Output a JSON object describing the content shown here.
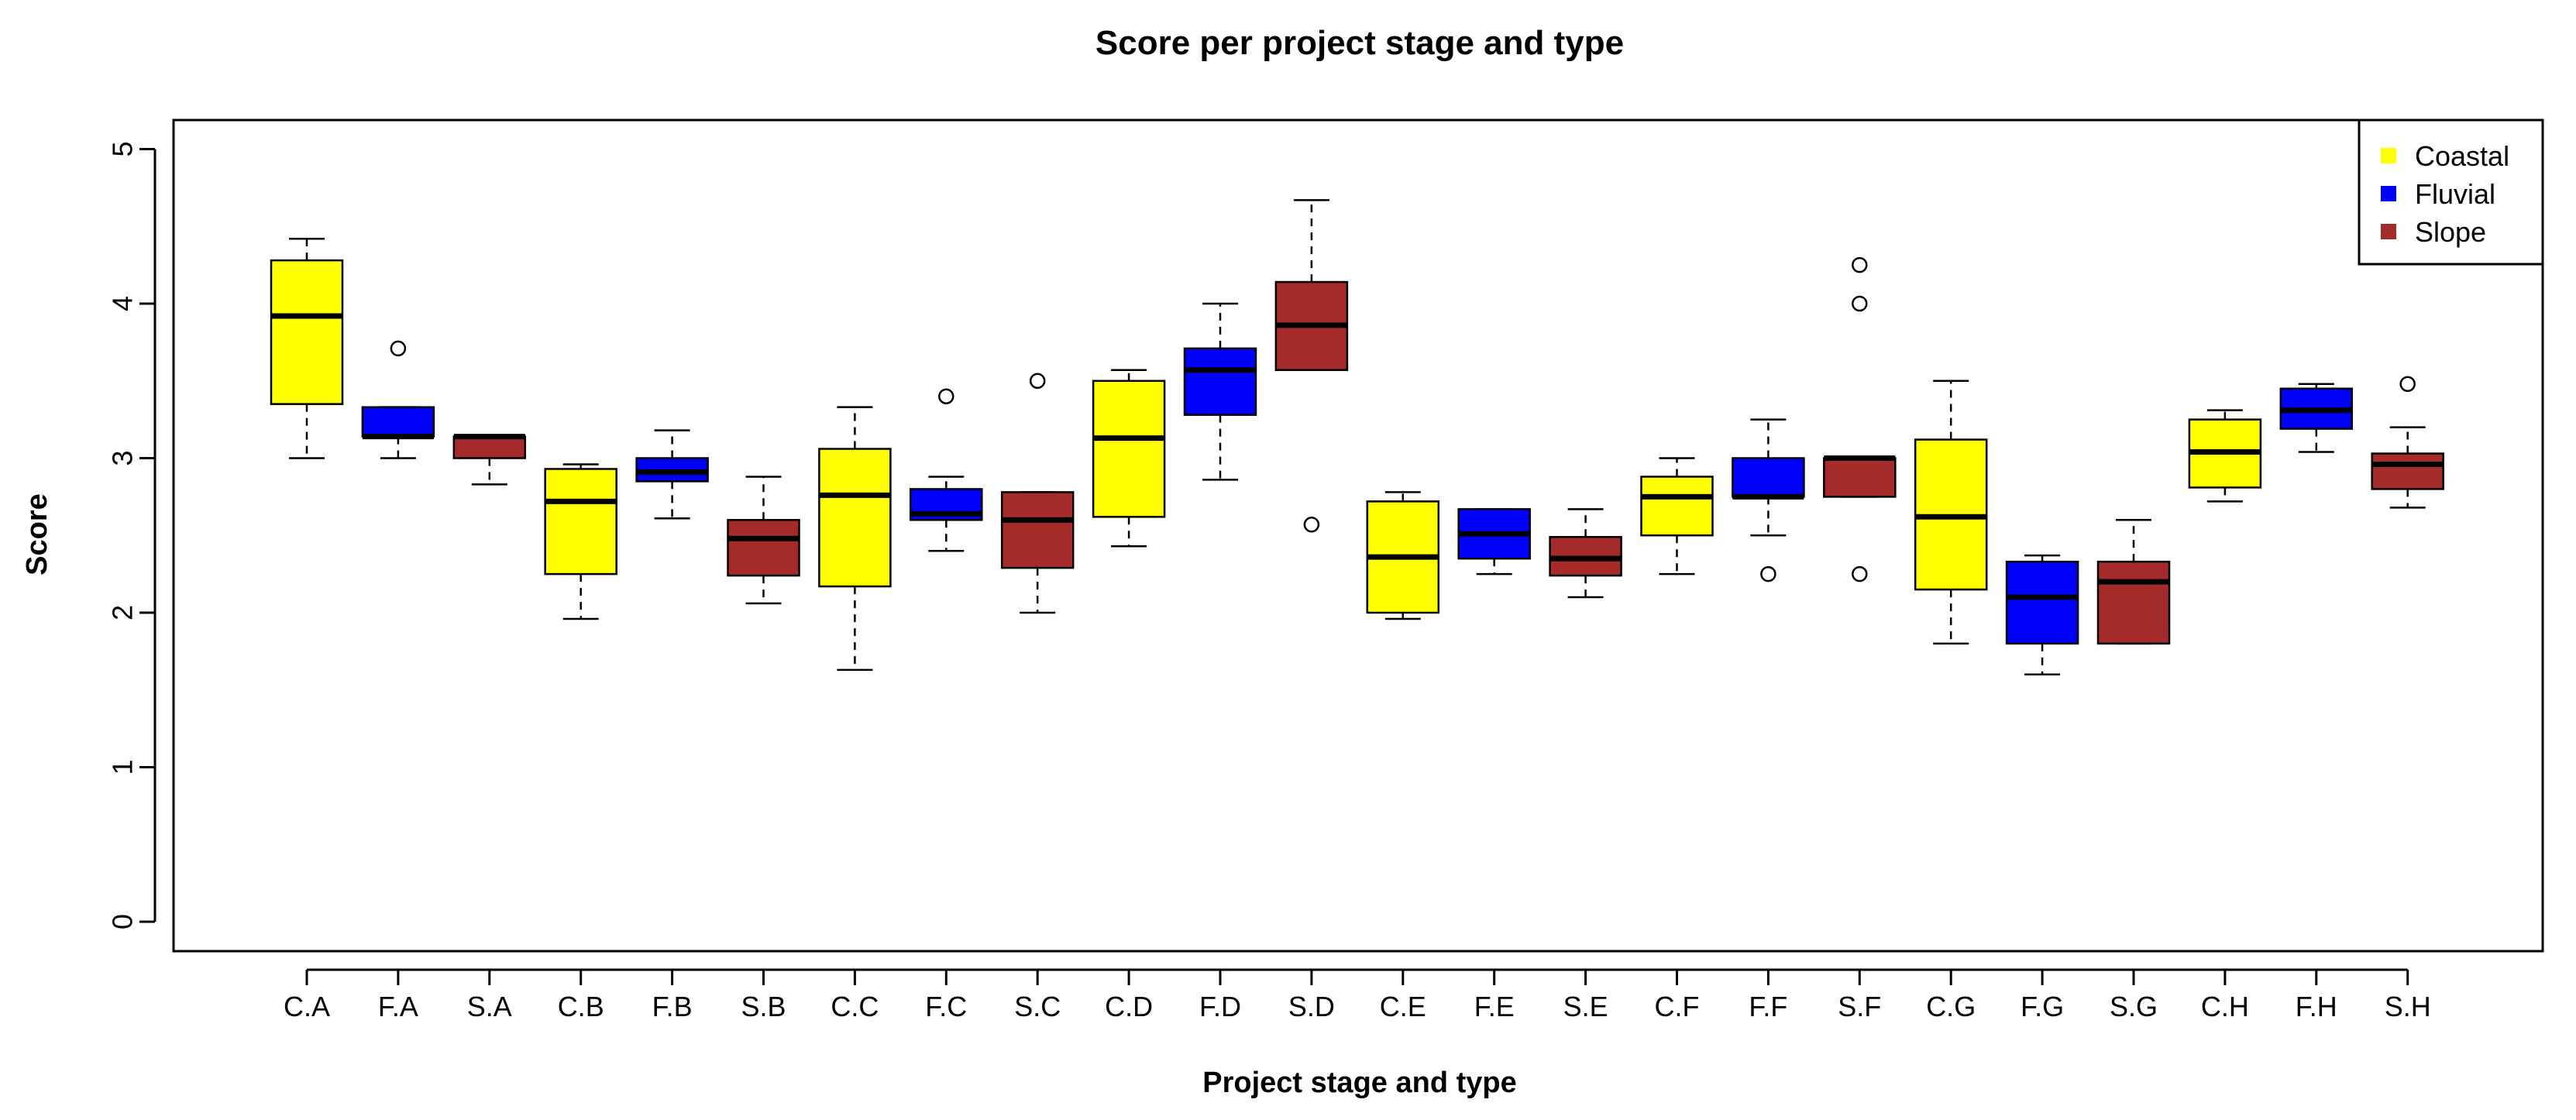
{
  "chart_data": {
    "type": "boxplot",
    "title": "Score per project stage and type",
    "xlabel": "Project stage and type",
    "ylabel": "Score",
    "ylim": [
      -0.2,
      5.2
    ],
    "yticks": [
      0,
      1,
      2,
      3,
      4,
      5
    ],
    "legend": {
      "position": "top-right",
      "entries": [
        {
          "label": "Coastal",
          "color": "#ffff00"
        },
        {
          "label": "Fluvial",
          "color": "#0000ff"
        },
        {
          "label": "Slope",
          "color": "#a52a2a"
        }
      ]
    },
    "categories": [
      "C.A",
      "F.A",
      "S.A",
      "C.B",
      "F.B",
      "S.B",
      "C.C",
      "F.C",
      "S.C",
      "C.D",
      "F.D",
      "S.D",
      "C.E",
      "F.E",
      "S.E",
      "C.F",
      "F.F",
      "S.F",
      "C.G",
      "F.G",
      "S.G",
      "C.H",
      "F.H",
      "S.H"
    ],
    "boxes": [
      {
        "label": "C.A",
        "type": "Coastal",
        "min": 3.0,
        "q1": 3.35,
        "median": 3.92,
        "q3": 4.28,
        "max": 4.42,
        "outliers": []
      },
      {
        "label": "F.A",
        "type": "Fluvial",
        "min": 3.0,
        "q1": 3.14,
        "median": 3.14,
        "q3": 3.33,
        "max": 3.33,
        "outliers": [
          3.71
        ]
      },
      {
        "label": "S.A",
        "type": "Slope",
        "min": 2.83,
        "q1": 3.0,
        "median": 3.14,
        "q3": 3.14,
        "max": 3.14,
        "outliers": []
      },
      {
        "label": "C.B",
        "type": "Coastal",
        "min": 1.96,
        "q1": 2.25,
        "median": 2.72,
        "q3": 2.93,
        "max": 2.96,
        "outliers": []
      },
      {
        "label": "F.B",
        "type": "Fluvial",
        "min": 2.61,
        "q1": 2.85,
        "median": 2.91,
        "q3": 3.0,
        "max": 3.18,
        "outliers": []
      },
      {
        "label": "S.B",
        "type": "Slope",
        "min": 2.06,
        "q1": 2.24,
        "median": 2.48,
        "q3": 2.6,
        "max": 2.88,
        "outliers": []
      },
      {
        "label": "C.C",
        "type": "Coastal",
        "min": 1.63,
        "q1": 2.17,
        "median": 2.76,
        "q3": 3.06,
        "max": 3.33,
        "outliers": []
      },
      {
        "label": "F.C",
        "type": "Fluvial",
        "min": 2.4,
        "q1": 2.6,
        "median": 2.64,
        "q3": 2.8,
        "max": 2.88,
        "outliers": [
          3.4
        ]
      },
      {
        "label": "S.C",
        "type": "Slope",
        "min": 2.0,
        "q1": 2.29,
        "median": 2.6,
        "q3": 2.78,
        "max": 2.78,
        "outliers": [
          3.5
        ]
      },
      {
        "label": "C.D",
        "type": "Coastal",
        "min": 2.43,
        "q1": 2.62,
        "median": 3.13,
        "q3": 3.5,
        "max": 3.57,
        "outliers": []
      },
      {
        "label": "F.D",
        "type": "Fluvial",
        "min": 2.86,
        "q1": 3.28,
        "median": 3.57,
        "q3": 3.71,
        "max": 4.0,
        "outliers": []
      },
      {
        "label": "S.D",
        "type": "Slope",
        "min": 3.57,
        "q1": 3.57,
        "median": 3.86,
        "q3": 4.14,
        "max": 4.67,
        "outliers": [
          2.57
        ]
      },
      {
        "label": "C.E",
        "type": "Coastal",
        "min": 1.96,
        "q1": 2.0,
        "median": 2.36,
        "q3": 2.72,
        "max": 2.78,
        "outliers": []
      },
      {
        "label": "F.E",
        "type": "Fluvial",
        "min": 2.25,
        "q1": 2.35,
        "median": 2.51,
        "q3": 2.67,
        "max": 2.67,
        "outliers": []
      },
      {
        "label": "S.E",
        "type": "Slope",
        "min": 2.1,
        "q1": 2.24,
        "median": 2.35,
        "q3": 2.49,
        "max": 2.67,
        "outliers": []
      },
      {
        "label": "C.F",
        "type": "Coastal",
        "min": 2.25,
        "q1": 2.5,
        "median": 2.75,
        "q3": 2.88,
        "max": 3.0,
        "outliers": []
      },
      {
        "label": "F.F",
        "type": "Fluvial",
        "min": 2.5,
        "q1": 2.75,
        "median": 2.75,
        "q3": 3.0,
        "max": 3.25,
        "outliers": [
          2.25
        ]
      },
      {
        "label": "S.F",
        "type": "Slope",
        "min": 2.75,
        "q1": 2.75,
        "median": 3.0,
        "q3": 3.0,
        "max": 3.0,
        "outliers": [
          4.25,
          4.0,
          2.25
        ]
      },
      {
        "label": "C.G",
        "type": "Coastal",
        "min": 1.8,
        "q1": 2.15,
        "median": 2.62,
        "q3": 3.12,
        "max": 3.5,
        "outliers": []
      },
      {
        "label": "F.G",
        "type": "Fluvial",
        "min": 1.6,
        "q1": 1.8,
        "median": 2.1,
        "q3": 2.33,
        "max": 2.37,
        "outliers": []
      },
      {
        "label": "S.G",
        "type": "Slope",
        "min": 1.8,
        "q1": 1.8,
        "median": 2.2,
        "q3": 2.33,
        "max": 2.6,
        "outliers": []
      },
      {
        "label": "C.H",
        "type": "Coastal",
        "min": 2.72,
        "q1": 2.81,
        "median": 3.04,
        "q3": 3.25,
        "max": 3.31,
        "outliers": []
      },
      {
        "label": "F.H",
        "type": "Fluvial",
        "min": 3.04,
        "q1": 3.19,
        "median": 3.31,
        "q3": 3.45,
        "max": 3.48,
        "outliers": []
      },
      {
        "label": "S.H",
        "type": "Slope",
        "min": 2.68,
        "q1": 2.8,
        "median": 2.96,
        "q3": 3.03,
        "max": 3.2,
        "outliers": [
          3.48
        ]
      }
    ]
  }
}
